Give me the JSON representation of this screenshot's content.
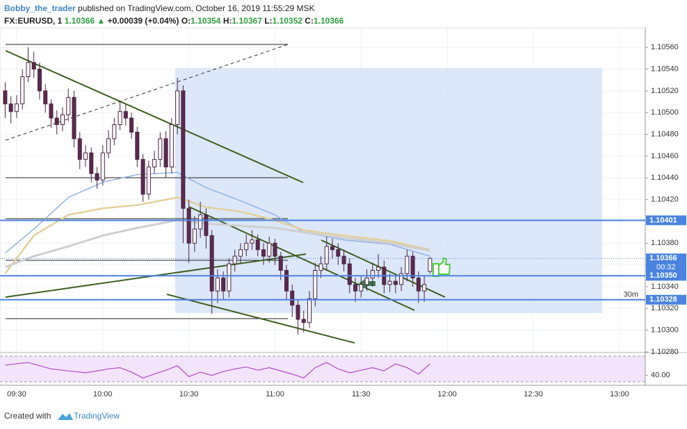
{
  "header": {
    "author": "Bobby_the_trader",
    "published": "published on TradingView.com, October 16, 2019 11:55:29 MSK",
    "symbol": "FX:EURUSD, 1",
    "price": "1.10366",
    "change": "+0.00039 (+0.04%)",
    "o_label": "O:",
    "o": "1.10354",
    "h_label": "H:",
    "h": "1.10367",
    "l_label": "L:",
    "l": "1.10352",
    "c_label": "C:",
    "c": "1.10366"
  },
  "chart_data": {
    "type": "candlestick",
    "x": [
      566,
      568,
      570,
      572,
      574,
      576,
      578,
      580,
      582,
      584,
      586,
      588,
      590,
      592,
      594,
      596,
      598,
      600,
      602,
      604,
      606,
      608,
      610,
      612,
      614,
      616,
      618,
      620,
      622,
      624,
      626,
      628,
      630,
      632,
      634,
      636,
      638,
      640,
      642,
      644,
      646,
      648,
      650,
      652,
      654,
      656,
      658,
      660,
      662,
      664,
      666,
      668,
      670,
      672,
      674,
      676,
      678,
      680,
      682,
      684,
      686,
      688,
      690,
      692,
      694,
      696,
      698,
      700,
      702,
      704,
      706,
      708,
      710,
      712,
      714
    ],
    "opens": [
      1.1052,
      1.10508,
      1.10501,
      1.10508,
      1.10533,
      1.10546,
      1.1054,
      1.1052,
      1.10508,
      1.10495,
      1.10489,
      1.10498,
      1.10514,
      1.10476,
      1.10457,
      1.10463,
      1.10444,
      1.10438,
      1.10463,
      1.10476,
      1.10489,
      1.10501,
      1.10495,
      1.10482,
      1.10457,
      1.10425,
      1.1045,
      1.10457,
      1.10476,
      1.1045,
      1.10489,
      1.1052,
      1.10412,
      1.1038,
      1.10393,
      1.10406,
      1.10387,
      1.10336,
      1.10348,
      1.10336,
      1.10361,
      1.10368,
      1.10374,
      1.1038,
      1.10383,
      1.10374,
      1.10368,
      1.1038,
      1.10368,
      1.10355,
      1.10336,
      1.10323,
      1.1031,
      1.10307,
      1.10329,
      1.10355,
      1.10361,
      1.10377,
      1.10374,
      1.10368,
      1.10361,
      1.10342,
      1.10336,
      1.10342,
      1.10348,
      1.10355,
      1.10358,
      1.10342,
      1.10345,
      1.10342,
      1.10352,
      1.10368,
      1.10348,
      1.10336,
      1.10354
    ],
    "highs": [
      1.10528,
      1.10515,
      1.10516,
      1.1054,
      1.1056,
      1.10556,
      1.10546,
      1.10526,
      1.10512,
      1.10502,
      1.10505,
      1.10522,
      1.1052,
      1.10482,
      1.1047,
      1.10468,
      1.1045,
      1.1047,
      1.10484,
      1.10495,
      1.1051,
      1.10508,
      1.105,
      1.10487,
      1.10462,
      1.10456,
      1.10465,
      1.10482,
      1.10483,
      1.10495,
      1.10532,
      1.10525,
      1.1042,
      1.10405,
      1.10418,
      1.10412,
      1.10392,
      1.10356,
      1.10354,
      1.10366,
      1.10374,
      1.1038,
      1.10388,
      1.10392,
      1.10388,
      1.1038,
      1.10386,
      1.10384,
      1.10372,
      1.1036,
      1.10342,
      1.10328,
      1.10318,
      1.10336,
      1.10362,
      1.10368,
      1.10386,
      1.10384,
      1.1038,
      1.10374,
      1.10366,
      1.10348,
      1.1035,
      1.10356,
      1.10362,
      1.1037,
      1.10364,
      1.10352,
      1.1035,
      1.10358,
      1.10374,
      1.10372,
      1.10354,
      1.1035,
      1.10367
    ],
    "lows": [
      1.10495,
      1.1049,
      1.10495,
      1.10503,
      1.10528,
      1.10532,
      1.10512,
      1.105,
      1.10486,
      1.1048,
      1.10483,
      1.10492,
      1.10468,
      1.10448,
      1.1045,
      1.10436,
      1.1043,
      1.10433,
      1.10458,
      1.1047,
      1.10484,
      1.10488,
      1.10476,
      1.1045,
      1.10418,
      1.1042,
      1.10444,
      1.1045,
      1.1044,
      1.10444,
      1.1048,
      1.1038,
      1.10362,
      1.10372,
      1.10385,
      1.10375,
      1.10315,
      1.10325,
      1.10328,
      1.1033,
      1.10354,
      1.10362,
      1.10368,
      1.10374,
      1.10368,
      1.1036,
      1.10362,
      1.1036,
      1.10346,
      1.10328,
      1.10312,
      1.10296,
      1.10298,
      1.10302,
      1.10322,
      1.10348,
      1.10355,
      1.10366,
      1.1036,
      1.10354,
      1.10334,
      1.10326,
      1.1033,
      1.10336,
      1.1034,
      1.10348,
      1.10334,
      1.10335,
      1.10334,
      1.10336,
      1.10345,
      1.1034,
      1.10325,
      1.10326,
      1.10352
    ],
    "closes": [
      1.10508,
      1.10501,
      1.10508,
      1.10533,
      1.10546,
      1.1054,
      1.1052,
      1.10508,
      1.10495,
      1.10489,
      1.10498,
      1.10514,
      1.10476,
      1.10457,
      1.10463,
      1.10444,
      1.10438,
      1.10463,
      1.10476,
      1.10489,
      1.10501,
      1.10495,
      1.10482,
      1.10457,
      1.10425,
      1.1045,
      1.10457,
      1.10476,
      1.1045,
      1.10489,
      1.1052,
      1.10412,
      1.1038,
      1.10393,
      1.10406,
      1.10387,
      1.10336,
      1.10348,
      1.10336,
      1.10361,
      1.10368,
      1.10374,
      1.1038,
      1.10383,
      1.10374,
      1.10368,
      1.1038,
      1.10368,
      1.10355,
      1.10336,
      1.10323,
      1.1031,
      1.10307,
      1.10329,
      1.10355,
      1.10361,
      1.10377,
      1.10374,
      1.10368,
      1.10361,
      1.10342,
      1.10336,
      1.10342,
      1.10348,
      1.10355,
      1.10358,
      1.10342,
      1.10345,
      1.10342,
      1.10352,
      1.10368,
      1.10348,
      1.10336,
      1.10342,
      1.10366
    ],
    "up_color": "#ffffff",
    "down_color": "#5a2a4f",
    "candle_border": "#4a2340",
    "overlays": [
      {
        "color": "#8fb3e8",
        "width": 1.5,
        "x": [
          566,
          576,
          588,
          600,
          612,
          626,
          636,
          648,
          660,
          670,
          684,
          700,
          714
        ],
        "values": [
          1.10371,
          1.10393,
          1.10422,
          1.10436,
          1.10443,
          1.10445,
          1.10431,
          1.10419,
          1.10406,
          1.1039,
          1.10383,
          1.10379,
          1.10368
        ]
      },
      {
        "color": "#e3cf9a",
        "width": 2.5,
        "x": [
          566,
          576,
          588,
          600,
          612,
          626,
          636,
          648,
          660,
          670,
          684,
          700,
          714
        ],
        "values": [
          1.10352,
          1.10387,
          1.10406,
          1.10412,
          1.10415,
          1.10422,
          1.10413,
          1.10409,
          1.10401,
          1.10392,
          1.10387,
          1.10382,
          1.10374
        ]
      },
      {
        "color": "#cfcfcf",
        "width": 3,
        "x": [
          566,
          576,
          588,
          600,
          612,
          626,
          636,
          648,
          660,
          670,
          684,
          700,
          714
        ],
        "values": [
          1.10358,
          1.10368,
          1.10377,
          1.10387,
          1.10394,
          1.10401,
          1.10398,
          1.10396,
          1.10394,
          1.1039,
          1.10385,
          1.1038,
          1.10373
        ]
      }
    ],
    "levels": [
      {
        "value": 1.10401,
        "label": "1.10401"
      },
      {
        "value": 1.1035,
        "label": "1.10350"
      },
      {
        "value": 1.10328,
        "label": "1.10328"
      }
    ],
    "level_color": "#4a83e0",
    "last_price": {
      "value": 1.10366,
      "label": "1.10366"
    },
    "countdown": "00:32",
    "interval": "30m",
    "xlim": [
      564.2,
      789
    ],
    "ylim": [
      1.1028,
      1.10578
    ],
    "xticks": [
      {
        "value": 570,
        "label": "09:30"
      },
      {
        "value": 600,
        "label": "10:00"
      },
      {
        "value": 630,
        "label": "10:30"
      },
      {
        "value": 660,
        "label": "11:00"
      },
      {
        "value": 690,
        "label": "11:30"
      },
      {
        "value": 720,
        "label": "12:00"
      },
      {
        "value": 750,
        "label": "12:30"
      },
      {
        "value": 780,
        "label": "13:00"
      }
    ],
    "yticks": [
      {
        "value": 1.1028,
        "label": "1.10280"
      },
      {
        "value": 1.103,
        "label": "1.10300"
      },
      {
        "value": 1.1032,
        "label": "1.10320"
      },
      {
        "value": 1.1034,
        "label": "1.10340"
      },
      {
        "value": 1.1036,
        "label": "1.10360"
      },
      {
        "value": 1.1038,
        "label": "1.10380"
      },
      {
        "value": 1.104,
        "label": "1.10400"
      },
      {
        "value": 1.1042,
        "label": "1.10420"
      },
      {
        "value": 1.1044,
        "label": "1.10440"
      },
      {
        "value": 1.1046,
        "label": "1.10460"
      },
      {
        "value": 1.1048,
        "label": "1.10480"
      },
      {
        "value": 1.105,
        "label": "1.10500"
      },
      {
        "value": 1.1052,
        "label": "1.10520"
      },
      {
        "value": 1.1054,
        "label": "1.10540"
      },
      {
        "value": 1.1056,
        "label": "1.10560"
      }
    ],
    "grid": true,
    "rsi": {
      "color": "#b04ac4",
      "ylim": [
        22.4,
        78.6
      ],
      "yticks": [
        {
          "value": 40,
          "label": "40.00"
        }
      ],
      "x": [
        566,
        570,
        574,
        578,
        582,
        586,
        590,
        594,
        598,
        602,
        606,
        610,
        614,
        618,
        622,
        626,
        630,
        634,
        638,
        642,
        646,
        650,
        654,
        658,
        662,
        666,
        670,
        674,
        678,
        682,
        686,
        690,
        694,
        698,
        702,
        706,
        710,
        714
      ],
      "values": [
        56,
        58,
        60,
        55,
        50,
        48,
        46,
        44,
        47,
        50,
        52,
        45,
        36,
        42,
        48,
        55,
        38,
        45,
        40,
        46,
        50,
        53,
        48,
        52,
        47,
        42,
        36,
        52,
        60,
        50,
        44,
        48,
        52,
        47,
        58,
        52,
        42,
        58
      ]
    }
  },
  "footer": {
    "created": "Created with",
    "brand": "TradingView"
  }
}
